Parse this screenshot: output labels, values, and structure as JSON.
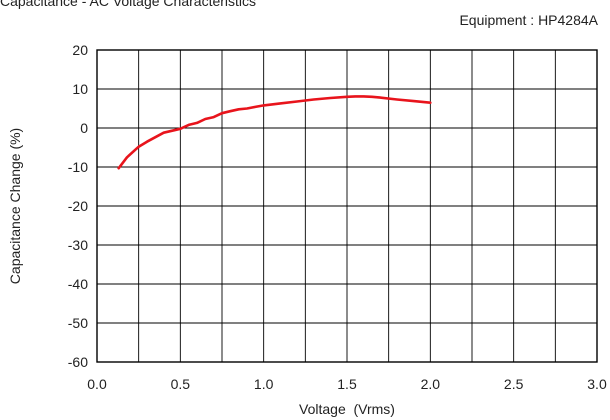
{
  "header": {
    "title": "Capacitance - AC Voltage Characteristics",
    "equipment": "Equipment : HP4284A"
  },
  "chart_data": {
    "type": "line",
    "title": "Capacitance - AC Voltage Characteristics",
    "xlabel": "Voltage  (Vrms)",
    "ylabel": "Capacitance Change (%)",
    "xlim": [
      0.0,
      3.0
    ],
    "ylim": [
      -60,
      20
    ],
    "x_ticks": [
      "0.0",
      "0.5",
      "1.0",
      "1.5",
      "2.0",
      "2.5",
      "3.0"
    ],
    "y_ticks": [
      "20",
      "10",
      "0",
      "-10",
      "-20",
      "-30",
      "-40",
      "-50",
      "-60"
    ],
    "grid": true,
    "series": [
      {
        "color": "#e8141c",
        "x": [
          0.13,
          0.18,
          0.25,
          0.3,
          0.4,
          0.5,
          0.55,
          0.6,
          0.65,
          0.7,
          0.75,
          0.8,
          0.85,
          0.9,
          0.95,
          1.0,
          1.1,
          1.2,
          1.3,
          1.4,
          1.5,
          1.55,
          1.6,
          1.65,
          1.7,
          1.8,
          1.9,
          2.0
        ],
        "y": [
          -10.3,
          -7.5,
          -4.8,
          -3.5,
          -1.2,
          -0.2,
          0.8,
          1.3,
          2.3,
          2.8,
          3.8,
          4.3,
          4.8,
          5.0,
          5.4,
          5.8,
          6.3,
          6.8,
          7.3,
          7.7,
          8.0,
          8.1,
          8.1,
          8.0,
          7.8,
          7.3,
          6.9,
          6.5
        ]
      }
    ]
  }
}
